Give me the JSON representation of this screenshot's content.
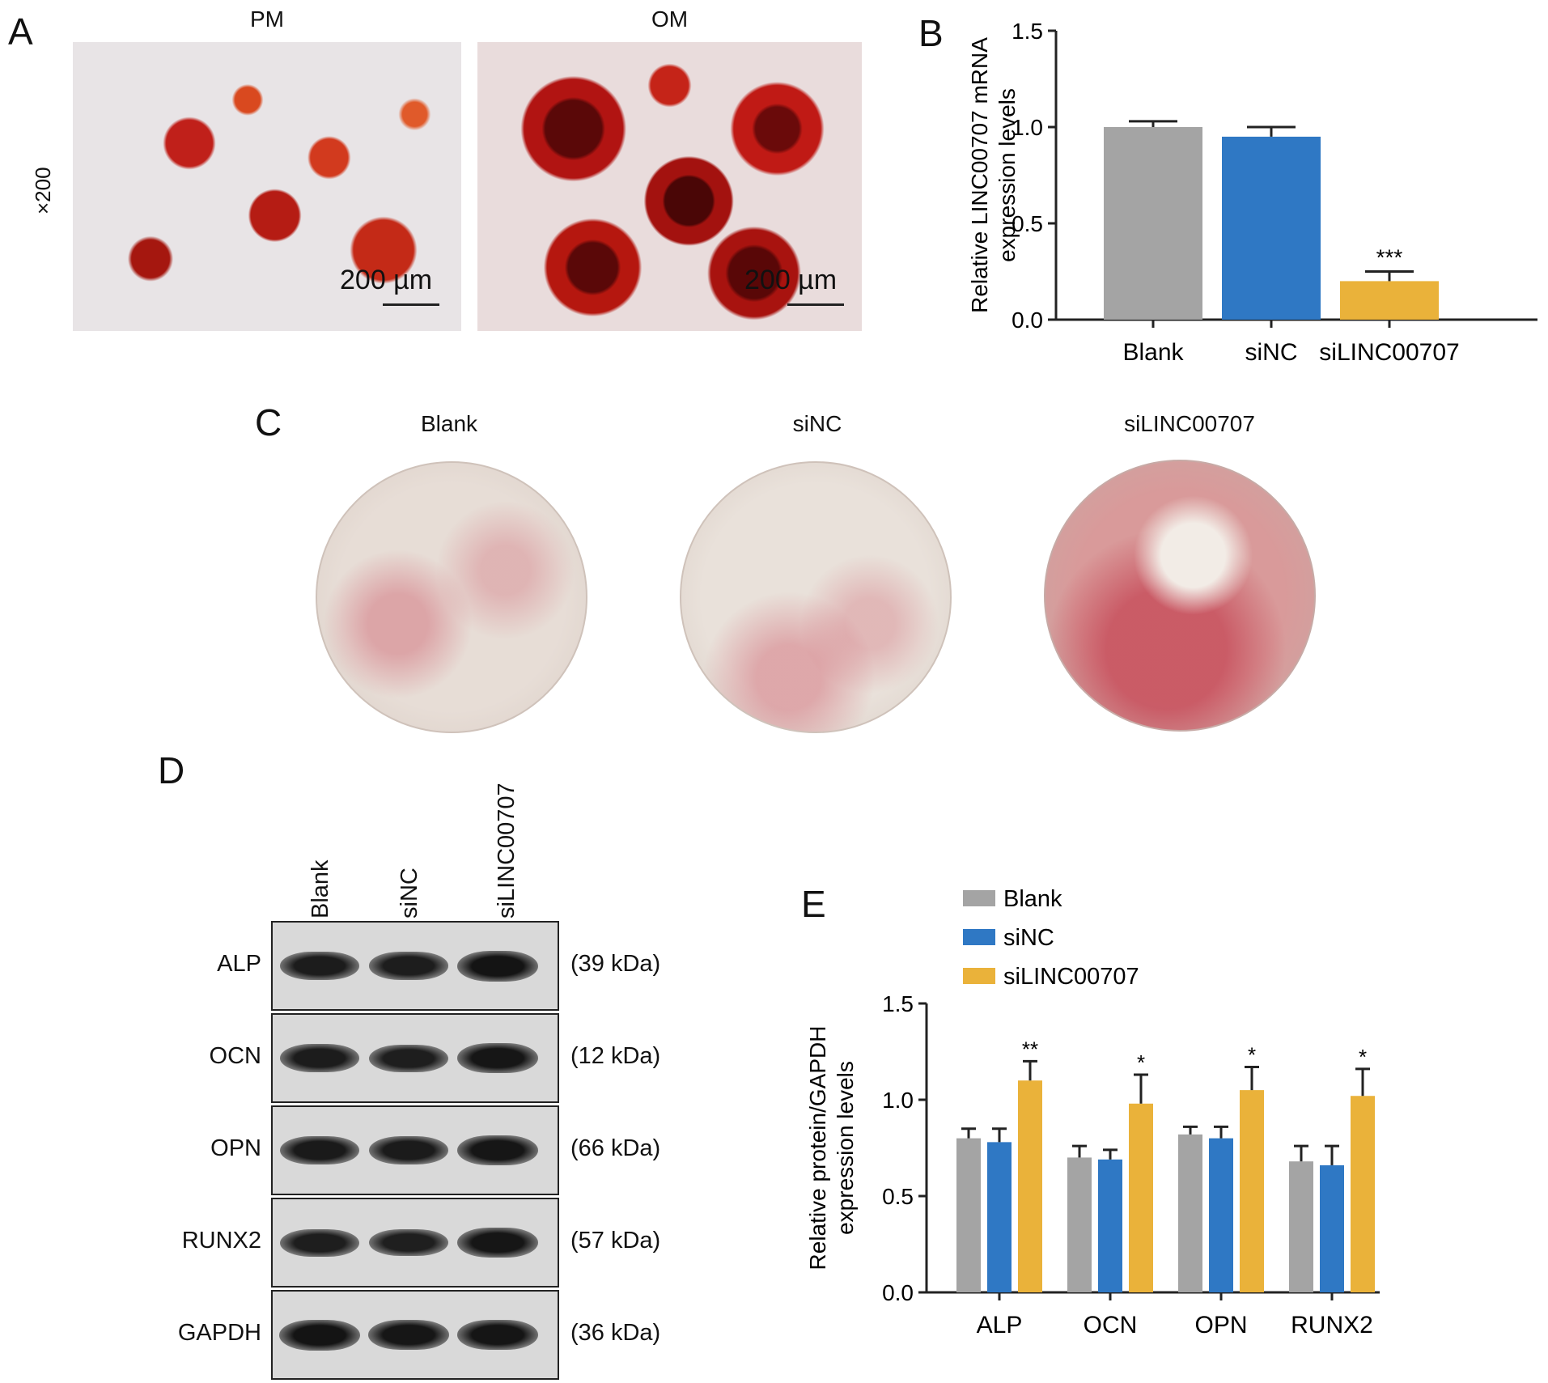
{
  "panel_letters": {
    "a": "A",
    "b": "B",
    "c": "C",
    "d": "D",
    "e": "E"
  },
  "panel_a": {
    "image_labels": [
      "PM",
      "OM"
    ],
    "magnification": "×200",
    "scale_bar": "200 µm"
  },
  "panel_c": {
    "dish_labels": [
      "Blank",
      "siNC",
      "siLINC00707"
    ]
  },
  "panel_d": {
    "lane_labels": [
      "Blank",
      "siNC",
      "siLINC00707"
    ],
    "rows": [
      {
        "protein": "ALP",
        "kda": "(39 kDa)",
        "intensity": [
          0.8,
          0.78,
          1.0
        ]
      },
      {
        "protein": "OCN",
        "kda": "(12 kDa)",
        "intensity": [
          0.8,
          0.75,
          0.95
        ]
      },
      {
        "protein": "OPN",
        "kda": "(66 kDa)",
        "intensity": [
          0.85,
          0.82,
          0.95
        ]
      },
      {
        "protein": "RUNX2",
        "kda": "(57 kDa)",
        "intensity": [
          0.75,
          0.72,
          0.95
        ]
      },
      {
        "protein": "GAPDH",
        "kda": "(36 kDa)",
        "intensity": [
          1.0,
          0.95,
          0.98
        ]
      }
    ]
  },
  "colors": {
    "blank": "#a4a4a4",
    "sinc": "#2f78c4",
    "silinc": "#eab23a"
  },
  "chart_data": [
    {
      "type": "bar",
      "panel": "B",
      "categories": [
        "Blank",
        "siNC",
        "siLINC00707"
      ],
      "values": [
        1.0,
        0.95,
        0.2
      ],
      "errors": [
        0.03,
        0.05,
        0.05
      ],
      "annotations": [
        "",
        "",
        "***"
      ],
      "ylabel": "Relative LINC00707 mRNA expression levels",
      "ylabel_lines": [
        "Relative LINC00707 mRNA",
        "expression levels"
      ],
      "ylim": [
        0,
        1.5
      ],
      "yticks": [
        "0.0",
        "0.5",
        "1.0",
        "1.5"
      ]
    },
    {
      "type": "bar",
      "panel": "E",
      "categories": [
        "ALP",
        "OCN",
        "OPN",
        "RUNX2"
      ],
      "series": [
        {
          "name": "Blank",
          "values": [
            0.8,
            0.7,
            0.82,
            0.68
          ],
          "errors": [
            0.05,
            0.06,
            0.04,
            0.08
          ]
        },
        {
          "name": "siNC",
          "values": [
            0.78,
            0.69,
            0.8,
            0.66
          ],
          "errors": [
            0.07,
            0.05,
            0.06,
            0.1
          ]
        },
        {
          "name": "siLINC00707",
          "values": [
            1.1,
            0.98,
            1.05,
            1.02
          ],
          "errors": [
            0.1,
            0.15,
            0.12,
            0.14
          ]
        }
      ],
      "annotations": [
        "**",
        "*",
        "*",
        "*"
      ],
      "ylabel": "Relative protein/GAPDH expression levels",
      "ylabel_lines": [
        "Relative protein/GAPDH",
        "expression levels"
      ],
      "ylim": [
        0,
        1.5
      ],
      "yticks": [
        "0.0",
        "0.5",
        "1.0",
        "1.5"
      ],
      "legend_position": "top-left"
    }
  ]
}
